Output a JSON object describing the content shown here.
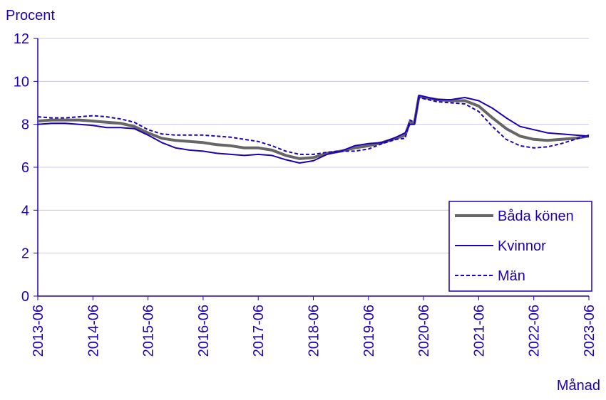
{
  "chart_data": {
    "type": "line",
    "y_label": "Procent",
    "x_label": "Månad",
    "x": [
      "2013-06",
      "2013-09",
      "2013-12",
      "2014-03",
      "2014-06",
      "2014-09",
      "2014-12",
      "2015-03",
      "2015-06",
      "2015-09",
      "2015-12",
      "2016-03",
      "2016-06",
      "2016-09",
      "2016-12",
      "2017-03",
      "2017-06",
      "2017-09",
      "2017-12",
      "2018-03",
      "2018-06",
      "2018-09",
      "2018-12",
      "2019-03",
      "2019-06",
      "2019-09",
      "2019-12",
      "2020-02",
      "2020-03",
      "2020-04",
      "2020-05",
      "2020-06",
      "2020-09",
      "2020-12",
      "2021-03",
      "2021-06",
      "2021-09",
      "2021-12",
      "2022-03",
      "2022-06",
      "2022-09",
      "2022-12",
      "2023-03",
      "2023-06"
    ],
    "series": [
      {
        "name": "Båda könen",
        "color": "#666666",
        "width": 4,
        "values": [
          8.15,
          8.2,
          8.2,
          8.2,
          8.15,
          8.1,
          8.05,
          7.9,
          7.6,
          7.35,
          7.25,
          7.2,
          7.15,
          7.05,
          7.0,
          6.9,
          6.9,
          6.8,
          6.55,
          6.4,
          6.45,
          6.65,
          6.75,
          6.9,
          7.0,
          7.15,
          7.35,
          7.5,
          8.1,
          8.05,
          9.3,
          9.25,
          9.15,
          9.1,
          9.1,
          8.85,
          8.3,
          7.8,
          7.45,
          7.3,
          7.25,
          7.3,
          7.35,
          7.45
        ]
      },
      {
        "name": "Kvinnor",
        "color": "#1f00b4",
        "width": 2,
        "values": [
          8.0,
          8.05,
          8.05,
          8.0,
          7.95,
          7.85,
          7.85,
          7.8,
          7.5,
          7.15,
          6.9,
          6.8,
          6.75,
          6.65,
          6.6,
          6.55,
          6.6,
          6.55,
          6.35,
          6.2,
          6.3,
          6.6,
          6.75,
          7.0,
          7.1,
          7.15,
          7.4,
          7.6,
          8.0,
          8.0,
          9.35,
          9.3,
          9.15,
          9.15,
          9.25,
          9.1,
          8.75,
          8.3,
          7.9,
          7.75,
          7.6,
          7.55,
          7.5,
          7.45
        ]
      },
      {
        "name": "Män",
        "color": "#1f00b4",
        "width": 2,
        "dash": true,
        "values": [
          8.35,
          8.3,
          8.3,
          8.35,
          8.4,
          8.35,
          8.25,
          8.1,
          7.75,
          7.55,
          7.5,
          7.5,
          7.5,
          7.45,
          7.4,
          7.3,
          7.2,
          7.0,
          6.75,
          6.6,
          6.6,
          6.7,
          6.75,
          6.75,
          6.85,
          7.1,
          7.3,
          7.35,
          8.2,
          8.1,
          9.25,
          9.2,
          9.05,
          9.0,
          8.95,
          8.6,
          7.9,
          7.3,
          7.0,
          6.9,
          6.95,
          7.1,
          7.3,
          7.5
        ]
      }
    ],
    "xlim": [
      "2013-06",
      "2023-06"
    ],
    "xticks": [
      "2013-06",
      "2014-06",
      "2015-06",
      "2016-06",
      "2017-06",
      "2018-06",
      "2019-06",
      "2020-06",
      "2021-06",
      "2022-06",
      "2023-06"
    ],
    "ylim": [
      0,
      12
    ],
    "yticks": [
      0,
      2,
      4,
      6,
      8,
      10,
      12
    ],
    "grid": true,
    "legend": "lower right"
  }
}
